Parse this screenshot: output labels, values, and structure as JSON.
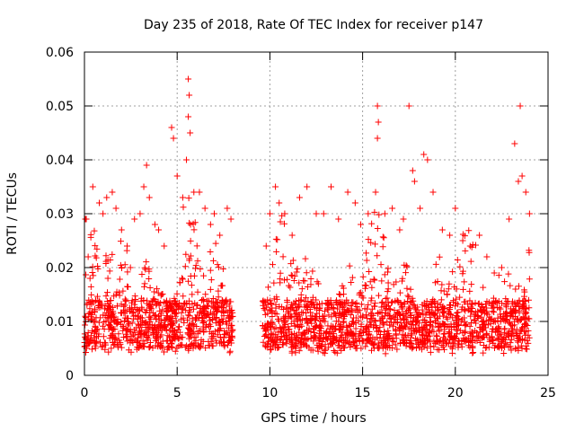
{
  "chart_data": {
    "type": "scatter",
    "title": "Day 235 of 2018, Rate Of TEC Index for receiver p147",
    "xlabel": "GPS time / hours",
    "ylabel": "ROTI / TECUs",
    "xlim": [
      0,
      25
    ],
    "ylim": [
      0,
      0.06
    ],
    "x_ticks": [
      "0",
      "5",
      "10",
      "15",
      "20",
      "25"
    ],
    "x_tick_values": [
      0,
      5,
      10,
      15,
      20,
      25
    ],
    "y_ticks": [
      "0",
      "0.01",
      "0.02",
      "0.03",
      "0.04",
      "0.05",
      "0.06"
    ],
    "y_tick_values": [
      0,
      0.01,
      0.02,
      0.03,
      0.04,
      0.05,
      0.06
    ],
    "grid": true,
    "marker": "+",
    "series_color": "#ff0000",
    "data_gap_hours": [
      8.0,
      9.6
    ],
    "series": [
      {
        "name": "ROTI",
        "points": [
          [
            0.05,
            0.029
          ],
          [
            0.1,
            0.029
          ],
          [
            0.2,
            0.022
          ],
          [
            0.3,
            0.018
          ],
          [
            0.45,
            0.035
          ],
          [
            0.8,
            0.032
          ],
          [
            1.0,
            0.03
          ],
          [
            1.2,
            0.033
          ],
          [
            1.5,
            0.034
          ],
          [
            1.7,
            0.031
          ],
          [
            2.0,
            0.027
          ],
          [
            2.3,
            0.024
          ],
          [
            2.7,
            0.029
          ],
          [
            3.0,
            0.03
          ],
          [
            3.2,
            0.035
          ],
          [
            3.35,
            0.039
          ],
          [
            3.5,
            0.033
          ],
          [
            3.8,
            0.028
          ],
          [
            4.0,
            0.027
          ],
          [
            4.3,
            0.024
          ],
          [
            4.7,
            0.046
          ],
          [
            4.8,
            0.044
          ],
          [
            5.0,
            0.037
          ],
          [
            5.3,
            0.033
          ],
          [
            5.6,
            0.055
          ],
          [
            5.65,
            0.052
          ],
          [
            5.6,
            0.048
          ],
          [
            5.7,
            0.045
          ],
          [
            5.5,
            0.04
          ],
          [
            5.9,
            0.034
          ],
          [
            6.2,
            0.034
          ],
          [
            6.5,
            0.031
          ],
          [
            6.8,
            0.028
          ],
          [
            7.0,
            0.03
          ],
          [
            7.3,
            0.026
          ],
          [
            7.7,
            0.031
          ],
          [
            7.9,
            0.029
          ],
          [
            9.8,
            0.024
          ],
          [
            10.0,
            0.03
          ],
          [
            10.3,
            0.035
          ],
          [
            10.5,
            0.032
          ],
          [
            10.8,
            0.03
          ],
          [
            11.2,
            0.026
          ],
          [
            11.6,
            0.033
          ],
          [
            12.0,
            0.035
          ],
          [
            12.5,
            0.03
          ],
          [
            12.9,
            0.03
          ],
          [
            13.3,
            0.035
          ],
          [
            13.7,
            0.029
          ],
          [
            14.2,
            0.034
          ],
          [
            14.6,
            0.032
          ],
          [
            14.9,
            0.028
          ],
          [
            15.3,
            0.03
          ],
          [
            15.7,
            0.034
          ],
          [
            15.8,
            0.05
          ],
          [
            15.85,
            0.047
          ],
          [
            15.8,
            0.044
          ],
          [
            16.2,
            0.03
          ],
          [
            16.6,
            0.031
          ],
          [
            17.0,
            0.027
          ],
          [
            17.2,
            0.029
          ],
          [
            17.5,
            0.05
          ],
          [
            17.7,
            0.038
          ],
          [
            17.8,
            0.036
          ],
          [
            18.1,
            0.031
          ],
          [
            18.3,
            0.041
          ],
          [
            18.5,
            0.04
          ],
          [
            18.8,
            0.034
          ],
          [
            19.3,
            0.027
          ],
          [
            19.7,
            0.026
          ],
          [
            20.0,
            0.031
          ],
          [
            20.4,
            0.025
          ],
          [
            20.8,
            0.024
          ],
          [
            21.3,
            0.026
          ],
          [
            21.7,
            0.022
          ],
          [
            22.1,
            0.019
          ],
          [
            22.5,
            0.02
          ],
          [
            22.9,
            0.029
          ],
          [
            23.2,
            0.043
          ],
          [
            23.4,
            0.036
          ],
          [
            23.5,
            0.05
          ],
          [
            23.6,
            0.037
          ],
          [
            23.8,
            0.034
          ],
          [
            24.0,
            0.03
          ]
        ]
      }
    ]
  }
}
